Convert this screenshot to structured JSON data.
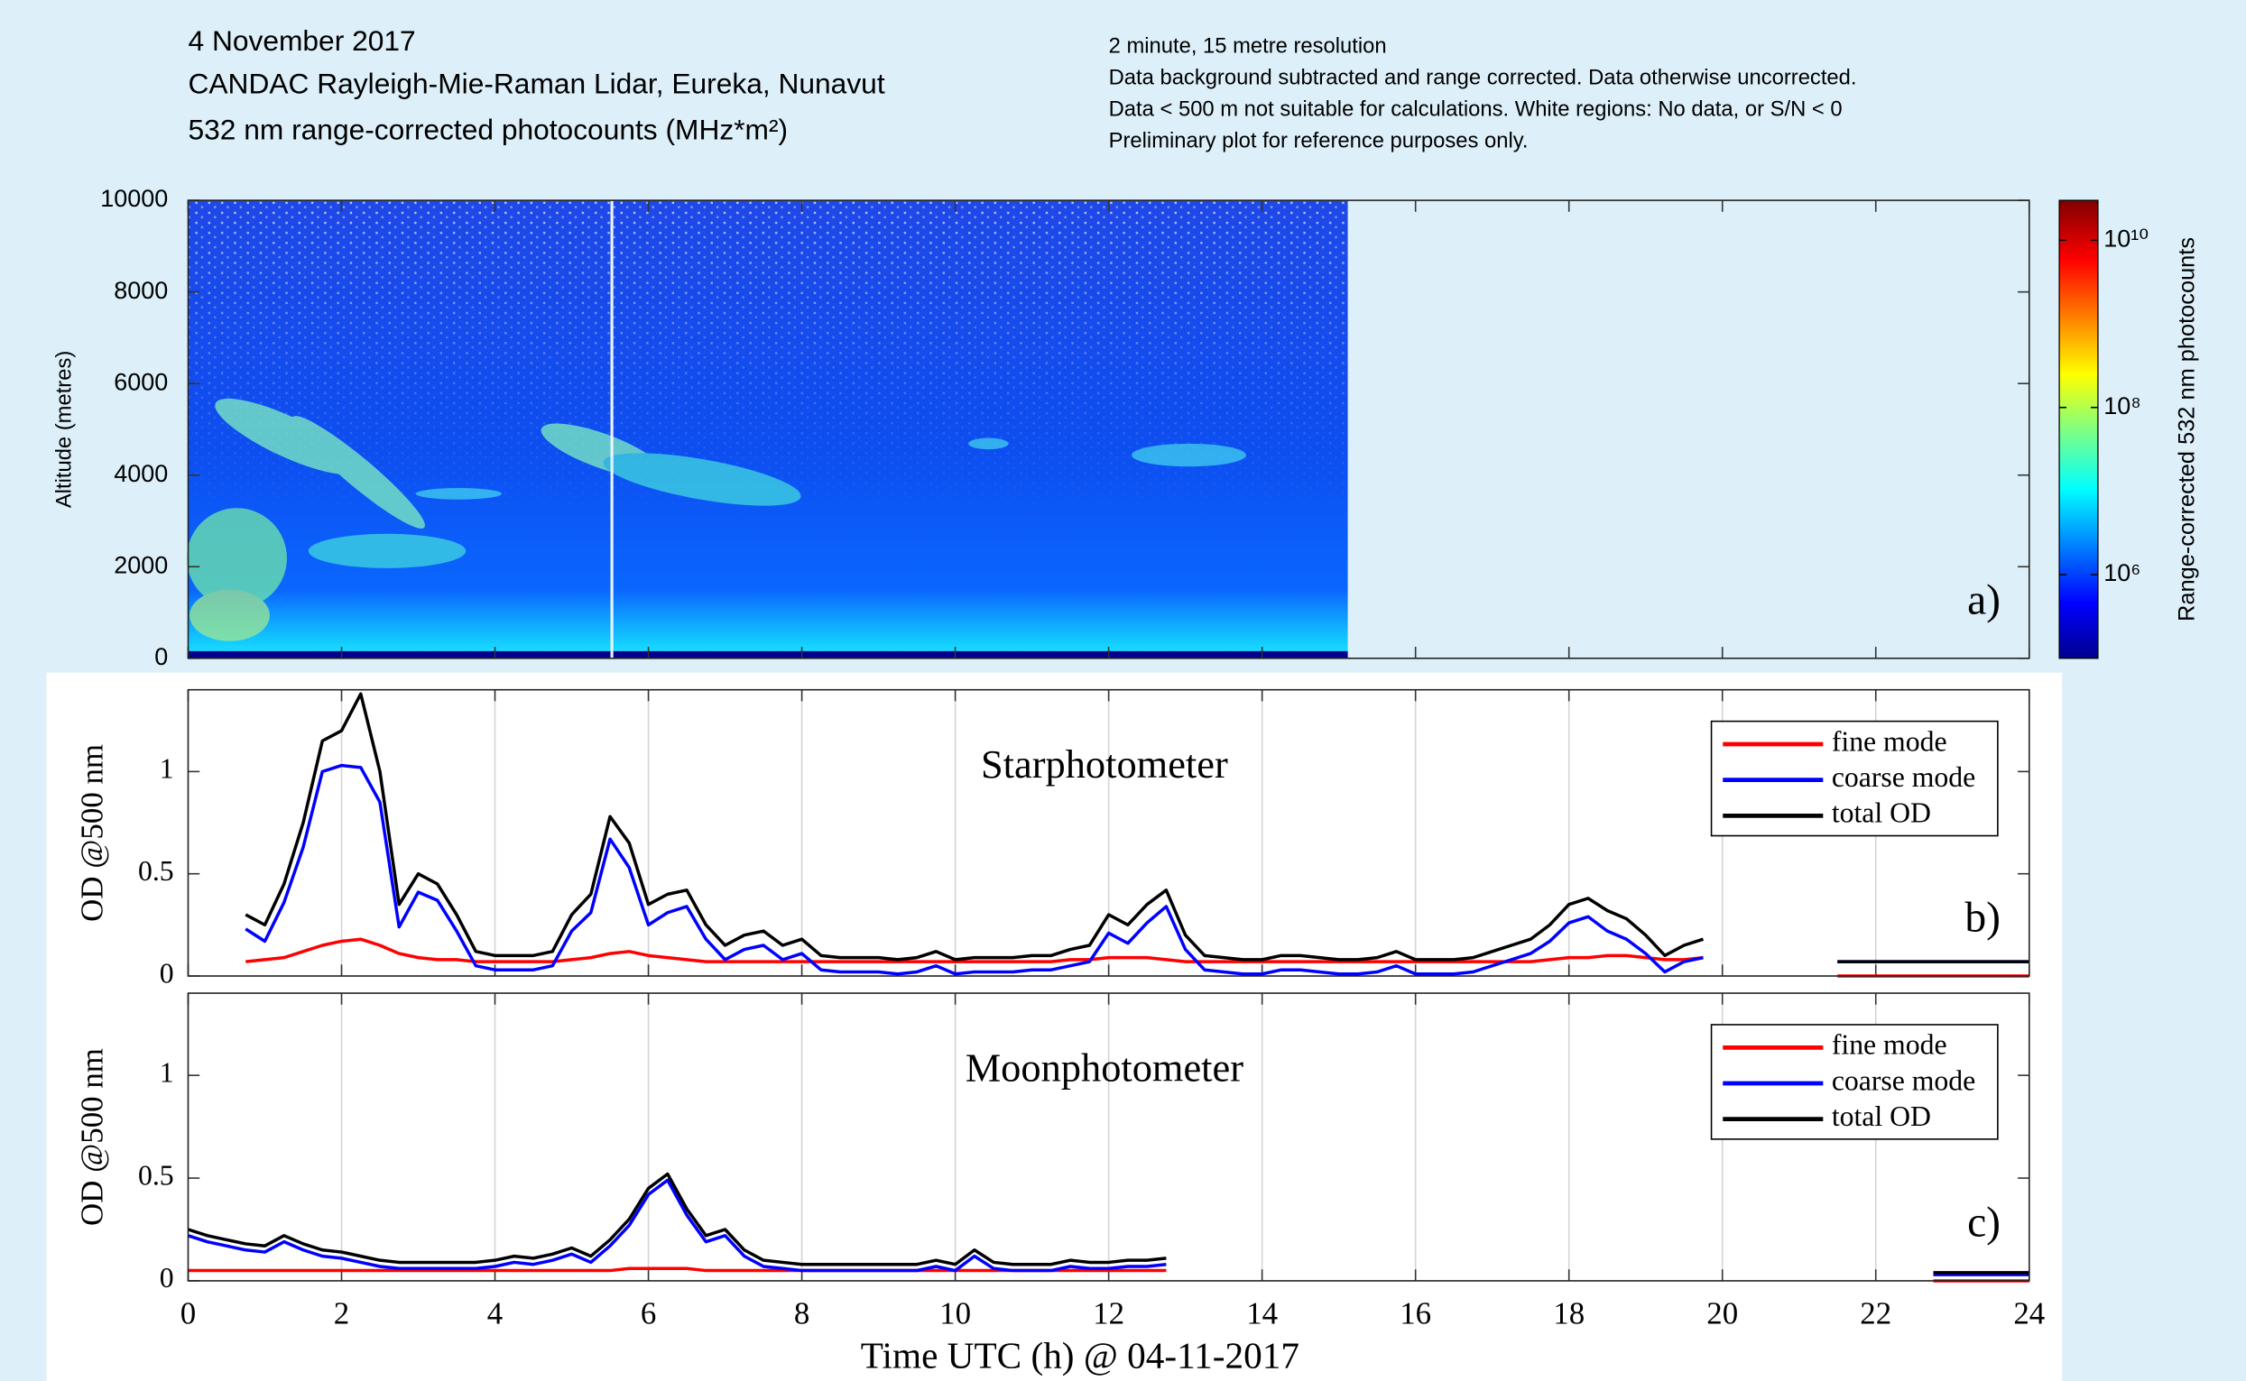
{
  "chart_data": [
    {
      "type": "heatmap",
      "title": "4 November 2017",
      "subtitle": "CANDAC Rayleigh-Mie-Raman Lidar, Eureka, Nunavut",
      "quantity": "532 nm range-corrected photocounts (MHz*m²)",
      "notes": [
        "2 minute, 15 metre resolution",
        "Data background subtracted and range corrected. Data otherwise uncorrected.",
        "Data < 500 m not suitable for calculations. White regions: No data, or S/N < 0",
        "Preliminary plot for reference purposes only."
      ],
      "ylabel": "Altitude (metres)",
      "xlim": [
        0,
        24
      ],
      "xticks": [
        0,
        2,
        4,
        6,
        8,
        10,
        12,
        14,
        16,
        18,
        20,
        22,
        24
      ],
      "xtick_labels": false,
      "ylim": [
        0,
        10000
      ],
      "yticks": [
        0,
        2000,
        4000,
        6000,
        8000,
        10000
      ],
      "grid": false,
      "panel_label": "a)",
      "colorbar": {
        "label": "Range-corrected 532 nm photocounts",
        "log_scale": true,
        "lim": [
          100000,
          30000000000
        ],
        "ticks": [
          {
            "value": 1000000,
            "label": "10⁶"
          },
          {
            "value": 100000000,
            "label": "10⁸"
          },
          {
            "value": 10000000000,
            "label": "10¹⁰"
          }
        ]
      }
    },
    {
      "type": "line",
      "title": "Starphotometer",
      "ylabel": "OD @500 nm",
      "xlim": [
        0,
        24
      ],
      "xticks": [
        0,
        2,
        4,
        6,
        8,
        10,
        12,
        14,
        16,
        18,
        20,
        22,
        24
      ],
      "xtick_labels": false,
      "ylim": [
        0,
        1.4
      ],
      "yticks": [
        0,
        0.5,
        1
      ],
      "grid": true,
      "legend": "upper right",
      "panel_label": "b)",
      "x": [
        0.75,
        1,
        1.25,
        1.5,
        1.75,
        2,
        2.25,
        2.5,
        2.75,
        3,
        3.25,
        3.5,
        3.75,
        4,
        4.25,
        4.5,
        4.75,
        5,
        5.25,
        5.5,
        5.75,
        6,
        6.25,
        6.5,
        6.75,
        7,
        7.25,
        7.5,
        7.75,
        8,
        8.25,
        8.5,
        8.75,
        9,
        9.25,
        9.5,
        9.75,
        10,
        10.25,
        10.5,
        10.75,
        11,
        11.25,
        11.5,
        11.75,
        12,
        12.25,
        12.5,
        12.75,
        13,
        13.25,
        13.5,
        13.75,
        14,
        14.25,
        14.5,
        14.75,
        15,
        15.25,
        15.5,
        15.75,
        16,
        16.25,
        16.5,
        16.75,
        17,
        17.25,
        17.5,
        17.75,
        18,
        18.25,
        18.5,
        18.75,
        19,
        19.25,
        19.5,
        19.75,
        20.75,
        21.5,
        22,
        22.5,
        23,
        23.5,
        24
      ],
      "series": [
        {
          "name": "fine mode",
          "color": "#ff0000",
          "values": [
            0.07,
            0.08,
            0.09,
            0.12,
            0.15,
            0.17,
            0.18,
            0.15,
            0.11,
            0.09,
            0.08,
            0.08,
            0.07,
            0.07,
            0.07,
            0.07,
            0.07,
            0.08,
            0.09,
            0.11,
            0.12,
            0.1,
            0.09,
            0.08,
            0.07,
            0.07,
            0.07,
            0.07,
            0.07,
            0.07,
            0.07,
            0.07,
            0.07,
            0.07,
            0.07,
            0.07,
            0.07,
            0.07,
            0.07,
            0.07,
            0.07,
            0.07,
            0.07,
            0.08,
            0.08,
            0.09,
            0.09,
            0.09,
            0.08,
            0.07,
            0.07,
            0.07,
            0.07,
            0.07,
            0.07,
            0.07,
            0.07,
            0.07,
            0.07,
            0.07,
            0.07,
            0.07,
            0.07,
            0.07,
            0.07,
            0.07,
            0.07,
            0.07,
            0.08,
            0.09,
            0.09,
            0.1,
            0.1,
            0.09,
            0.08,
            0.08,
            0.09,
            null,
            0,
            0,
            0,
            0,
            0,
            0
          ]
        },
        {
          "name": "coarse mode",
          "color": "#0000ff",
          "values": [
            0.23,
            0.17,
            0.36,
            0.63,
            1.0,
            1.03,
            1.02,
            0.85,
            0.24,
            0.41,
            0.37,
            0.22,
            0.05,
            0.03,
            0.03,
            0.03,
            0.05,
            0.22,
            0.31,
            0.67,
            0.53,
            0.25,
            0.31,
            0.34,
            0.18,
            0.08,
            0.13,
            0.15,
            0.08,
            0.11,
            0.03,
            0.02,
            0.02,
            0.02,
            0.01,
            0.02,
            0.05,
            0.01,
            0.02,
            0.02,
            0.02,
            0.03,
            0.03,
            0.05,
            0.07,
            0.21,
            0.16,
            0.26,
            0.34,
            0.13,
            0.03,
            0.02,
            0.01,
            0.01,
            0.03,
            0.03,
            0.02,
            0.01,
            0.01,
            0.02,
            0.05,
            0.01,
            0.01,
            0.01,
            0.02,
            0.05,
            0.08,
            0.11,
            0.17,
            0.26,
            0.29,
            0.22,
            0.18,
            0.11,
            0.02,
            0.07,
            0.09,
            null,
            0.07,
            0.07,
            0.07,
            0.07,
            0.07,
            0.07
          ]
        },
        {
          "name": "total OD",
          "color": "#000000",
          "values": [
            0.3,
            0.25,
            0.45,
            0.75,
            1.15,
            1.2,
            1.38,
            1.0,
            0.35,
            0.5,
            0.45,
            0.3,
            0.12,
            0.1,
            0.1,
            0.1,
            0.12,
            0.3,
            0.4,
            0.78,
            0.65,
            0.35,
            0.4,
            0.42,
            0.25,
            0.15,
            0.2,
            0.22,
            0.15,
            0.18,
            0.1,
            0.09,
            0.09,
            0.09,
            0.08,
            0.09,
            0.12,
            0.08,
            0.09,
            0.09,
            0.09,
            0.1,
            0.1,
            0.13,
            0.15,
            0.3,
            0.25,
            0.35,
            0.42,
            0.2,
            0.1,
            0.09,
            0.08,
            0.08,
            0.1,
            0.1,
            0.09,
            0.08,
            0.08,
            0.09,
            0.12,
            0.08,
            0.08,
            0.08,
            0.09,
            0.12,
            0.15,
            0.18,
            0.25,
            0.35,
            0.38,
            0.32,
            0.28,
            0.2,
            0.1,
            0.15,
            0.18,
            null,
            0.07,
            0.07,
            0.07,
            0.07,
            0.07,
            0.07
          ]
        }
      ]
    },
    {
      "type": "line",
      "title": "Moonphotometer",
      "ylabel": "OD @500 nm",
      "xlabel": "Time UTC (h) @ 04-11-2017",
      "xlim": [
        0,
        24
      ],
      "xticks": [
        0,
        2,
        4,
        6,
        8,
        10,
        12,
        14,
        16,
        18,
        20,
        22,
        24
      ],
      "xtick_labels": true,
      "ylim": [
        0,
        1.4
      ],
      "yticks": [
        0,
        0.5,
        1
      ],
      "grid": true,
      "legend": "upper right",
      "panel_label": "c)",
      "x": [
        0,
        0.25,
        0.5,
        0.75,
        1,
        1.25,
        1.5,
        1.75,
        2,
        2.25,
        2.5,
        2.75,
        3,
        3.25,
        3.5,
        3.75,
        4,
        4.25,
        4.5,
        4.75,
        5,
        5.25,
        5.5,
        5.75,
        6,
        6.25,
        6.5,
        6.75,
        7,
        7.25,
        7.5,
        7.75,
        8,
        8.25,
        8.5,
        8.75,
        9,
        9.25,
        9.5,
        9.75,
        10,
        10.25,
        10.5,
        10.75,
        11,
        11.25,
        11.5,
        11.75,
        12,
        12.25,
        12.5,
        12.75,
        17.5,
        22.75,
        23,
        23.25,
        23.5,
        23.75,
        24
      ],
      "series": [
        {
          "name": "fine mode",
          "color": "#ff0000",
          "values": [
            0.05,
            0.05,
            0.05,
            0.05,
            0.05,
            0.05,
            0.05,
            0.05,
            0.05,
            0.05,
            0.05,
            0.05,
            0.05,
            0.05,
            0.05,
            0.05,
            0.05,
            0.05,
            0.05,
            0.05,
            0.05,
            0.05,
            0.05,
            0.06,
            0.06,
            0.06,
            0.06,
            0.05,
            0.05,
            0.05,
            0.05,
            0.05,
            0.05,
            0.05,
            0.05,
            0.05,
            0.05,
            0.05,
            0.05,
            0.05,
            0.05,
            0.05,
            0.05,
            0.05,
            0.05,
            0.05,
            0.05,
            0.05,
            0.05,
            0.05,
            0.05,
            0.05,
            null,
            0,
            0,
            0,
            0,
            0,
            0
          ]
        },
        {
          "name": "coarse mode",
          "color": "#0000ff",
          "values": [
            0.22,
            0.19,
            0.17,
            0.15,
            0.14,
            0.19,
            0.15,
            0.12,
            0.11,
            0.09,
            0.07,
            0.06,
            0.06,
            0.06,
            0.06,
            0.06,
            0.07,
            0.09,
            0.08,
            0.1,
            0.13,
            0.09,
            0.17,
            0.27,
            0.42,
            0.49,
            0.32,
            0.19,
            0.22,
            0.12,
            0.07,
            0.06,
            0.05,
            0.05,
            0.05,
            0.05,
            0.05,
            0.05,
            0.05,
            0.07,
            0.05,
            0.12,
            0.06,
            0.05,
            0.05,
            0.05,
            0.07,
            0.06,
            0.06,
            0.07,
            0.07,
            0.08,
            null,
            0.03,
            0.03,
            0.03,
            0.03,
            0.03,
            0.03
          ]
        },
        {
          "name": "total OD",
          "color": "#000000",
          "values": [
            0.25,
            0.22,
            0.2,
            0.18,
            0.17,
            0.22,
            0.18,
            0.15,
            0.14,
            0.12,
            0.1,
            0.09,
            0.09,
            0.09,
            0.09,
            0.09,
            0.1,
            0.12,
            0.11,
            0.13,
            0.16,
            0.12,
            0.2,
            0.3,
            0.45,
            0.52,
            0.35,
            0.22,
            0.25,
            0.15,
            0.1,
            0.09,
            0.08,
            0.08,
            0.08,
            0.08,
            0.08,
            0.08,
            0.08,
            0.1,
            0.08,
            0.15,
            0.09,
            0.08,
            0.08,
            0.08,
            0.1,
            0.09,
            0.09,
            0.1,
            0.1,
            0.11,
            null,
            0.04,
            0.04,
            0.04,
            0.04,
            0.04,
            0.04
          ]
        }
      ]
    }
  ]
}
